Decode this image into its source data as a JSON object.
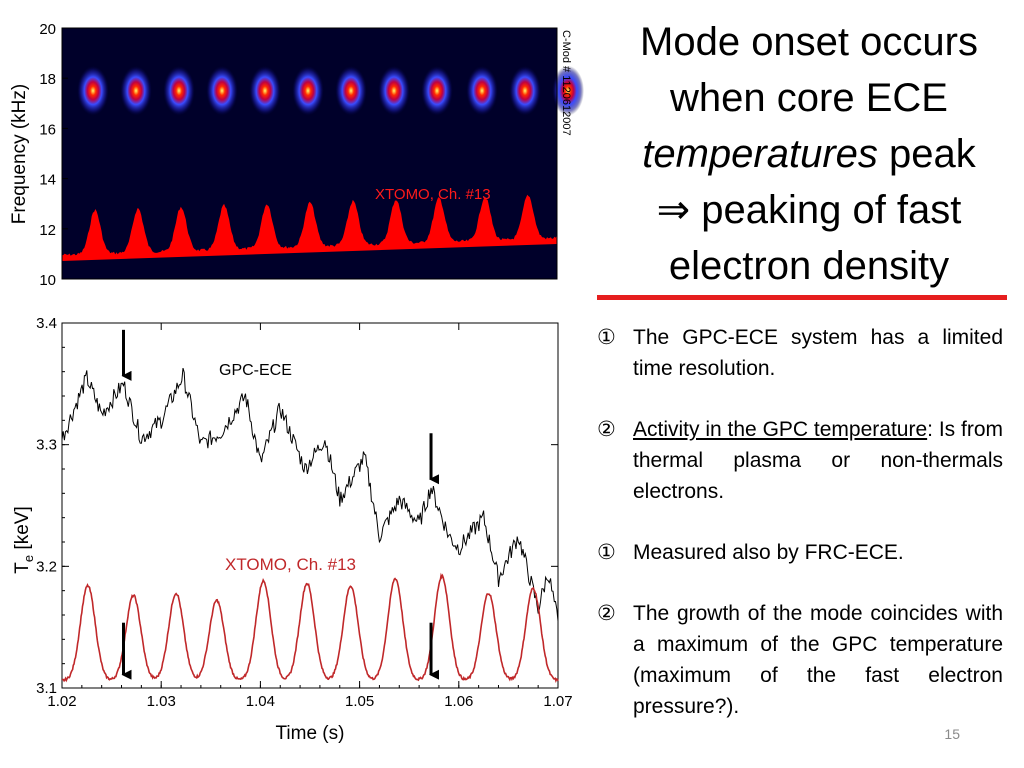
{
  "slide": {
    "title_line1": "Mode onset occurs",
    "title_line2": "when core ECE",
    "title_italic": "temperatures",
    "title_line3_rest": " peak",
    "title_line4": "⇒ peaking of fast",
    "title_line5": "electron density",
    "slide_number": "15",
    "accent_color": "#e61e1e"
  },
  "bullets": [
    {
      "num": "①",
      "text": "The GPC-ECE system has a limited time resolution."
    },
    {
      "num": "②",
      "underlined": "Activity in the GPC temperature",
      "rest": ": Is from thermal plasma or non-thermals electrons."
    },
    {
      "num": "①",
      "text": "Measured also by FRC-ECE."
    },
    {
      "num": "②",
      "text": "The growth of the mode coincides with a maximum of the GPC temperature (maximum of the fast electron pressure?)."
    }
  ],
  "chart_data": [
    {
      "type": "heatmap",
      "ylabel": "Frequency (kHz)",
      "ylim": [
        10,
        20
      ],
      "yticks": [
        "20",
        "18",
        "16",
        "14",
        "12",
        "10"
      ],
      "side_label": "C-Mod # 1120612007",
      "annotation": "XTOMO, Ch. #13",
      "bursts_frequency_khz": 17.5,
      "burst_count": 12,
      "trace_color": "#ff0000"
    },
    {
      "type": "line",
      "xlabel": "Time (s)",
      "ylabel": "T",
      "ylabel_sub": "e",
      "ylabel_unit": " [keV]",
      "xlim": [
        1.02,
        1.07
      ],
      "ylim": [
        3.1,
        3.4
      ],
      "xticks": [
        "1.02",
        "1.03",
        "1.04",
        "1.05",
        "1.06",
        "1.07"
      ],
      "yticks": [
        "3.4",
        "3.3",
        "3.2",
        "3.1"
      ],
      "series": [
        {
          "name": "GPC-ECE",
          "color": "#000000",
          "x": [
            1.02,
            1.0225,
            1.024,
            1.0262,
            1.028,
            1.03,
            1.0322,
            1.034,
            1.036,
            1.0385,
            1.04,
            1.042,
            1.0445,
            1.0465,
            1.048,
            1.0505,
            1.052,
            1.054,
            1.055,
            1.056,
            1.0572,
            1.059,
            1.06,
            1.0625,
            1.064,
            1.066,
            1.068,
            1.069,
            1.07
          ],
          "y": [
            3.305,
            3.355,
            3.325,
            3.35,
            3.305,
            3.32,
            3.357,
            3.3,
            3.31,
            3.34,
            3.285,
            3.33,
            3.28,
            3.305,
            3.255,
            3.29,
            3.225,
            3.255,
            3.245,
            3.235,
            3.265,
            3.225,
            3.215,
            3.24,
            3.19,
            3.225,
            3.165,
            3.195,
            3.155
          ]
        },
        {
          "name": "XTOMO, Ch. #13",
          "color": "#c0282a",
          "peak_times": [
            1.0226,
            1.0272,
            1.0315,
            1.0356,
            1.0403,
            1.0447,
            1.0491,
            1.0536,
            1.0583,
            1.063,
            1.0675
          ],
          "peak_values": [
            3.184,
            3.176,
            3.178,
            3.172,
            3.188,
            3.186,
            3.184,
            3.19,
            3.192,
            3.178,
            3.182
          ],
          "baseline": 3.106
        }
      ],
      "arrow_times": [
        1.0262,
        1.0572
      ]
    }
  ]
}
